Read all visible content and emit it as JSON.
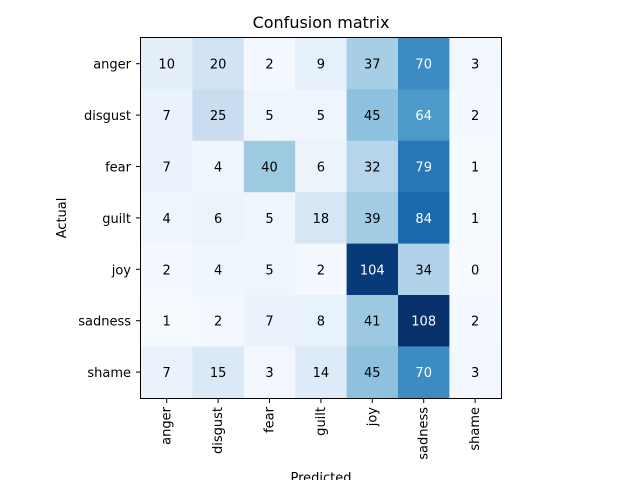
{
  "chart_data": {
    "type": "heatmap",
    "title": "Confusion matrix",
    "xlabel": "Predicted",
    "ylabel": "Actual",
    "x_categories": [
      "anger",
      "disgust",
      "fear",
      "guilt",
      "joy",
      "sadness",
      "shame"
    ],
    "y_categories": [
      "anger",
      "disgust",
      "fear",
      "guilt",
      "joy",
      "sadness",
      "shame"
    ],
    "values": [
      [
        10,
        20,
        2,
        9,
        37,
        70,
        3
      ],
      [
        7,
        25,
        5,
        5,
        45,
        64,
        2
      ],
      [
        7,
        4,
        40,
        6,
        32,
        79,
        1
      ],
      [
        4,
        6,
        5,
        18,
        39,
        84,
        1
      ],
      [
        2,
        4,
        5,
        2,
        104,
        34,
        0
      ],
      [
        1,
        2,
        7,
        8,
        41,
        108,
        2
      ],
      [
        7,
        15,
        3,
        14,
        45,
        70,
        3
      ]
    ],
    "colormap": "Blues",
    "color_low": "#f7fbff",
    "color_high": "#08306b",
    "text_color_dark": "#000000",
    "text_color_light": "#ffffff"
  }
}
